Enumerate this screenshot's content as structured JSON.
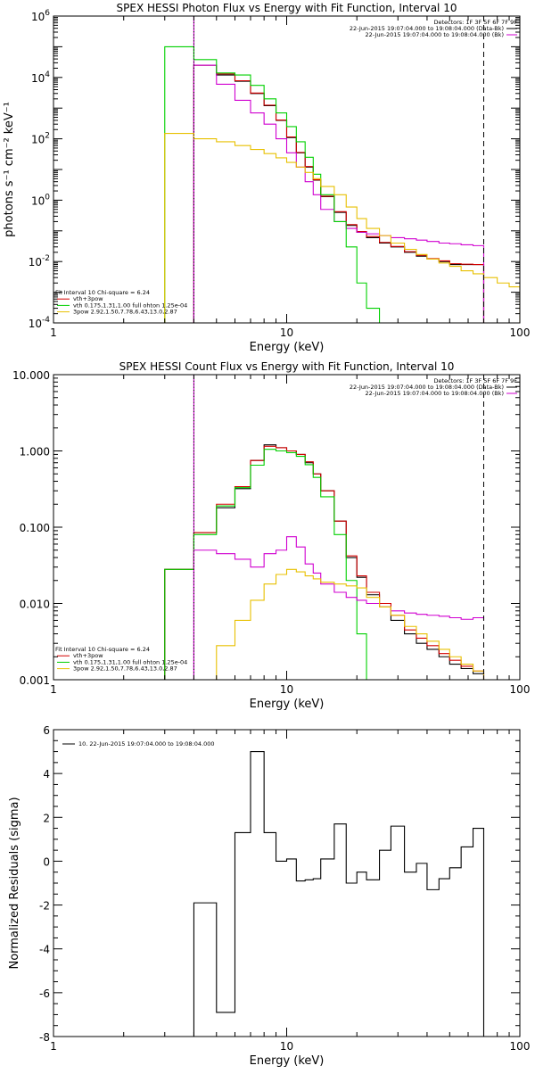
{
  "colors": {
    "black": "#000000",
    "red": "#d40000",
    "green": "#00d000",
    "magenta": "#d000d0",
    "yellow": "#e8c000"
  },
  "chart_data": [
    {
      "type": "line",
      "title": "SPEX HESSI Photon Flux vs Energy with Fit Function, Interval 10",
      "xlabel": "Energy (keV)",
      "ylabel": "photons s⁻¹ cm⁻² keV⁻¹",
      "xscale": "log",
      "yscale": "log",
      "xlim": [
        1,
        100
      ],
      "ylim": [
        0.0001,
        1000000
      ],
      "xticks": [
        {
          "value": 1,
          "label": "1"
        },
        {
          "value": 10,
          "label": "10"
        },
        {
          "value": 100,
          "label": "100"
        }
      ],
      "yticks": [
        {
          "value": 0.0001,
          "base": "10",
          "exp": "-4"
        },
        {
          "value": 0.01,
          "base": "10",
          "exp": "-2"
        },
        {
          "value": 1,
          "base": "10",
          "exp": "0"
        },
        {
          "value": 100,
          "base": "10",
          "exp": "2"
        },
        {
          "value": 10000,
          "base": "10",
          "exp": "4"
        },
        {
          "value": 1000000,
          "base": "10",
          "exp": "6"
        }
      ],
      "vlines": [
        {
          "x": 4.0,
          "style": "dotted",
          "color": "#000000"
        },
        {
          "x": 70.0,
          "style": "dashed",
          "color": "#000000"
        }
      ],
      "legend_right": [
        {
          "text": "Detectors: 1F 3F 5F 6F 7F 9F",
          "color": ""
        },
        {
          "text": "22-Jun-2015 19:07:04.000 to 19:08:04.000 (Data-Bk)",
          "color": "#000000"
        },
        {
          "text": "22-Jun-2015 19:07:04.000 to 19:08:04.000 (Bk)",
          "color": "#d000d0"
        }
      ],
      "legend_left": [
        {
          "text": "Fit Interval 10   Chi-square = 6.24",
          "color": ""
        },
        {
          "text": "vth+3pow",
          "color": "#d40000"
        },
        {
          "text": "vth 0.175,1.31,1.00  full ohton 1.25e-04",
          "color": "#00d000"
        },
        {
          "text": "3pow 2.92,1.50,7.78,6.43,13.0,2.87",
          "color": "#e8c000"
        }
      ],
      "series": [
        {
          "color": "#d000d0",
          "x_edges": [
            4.0,
            4.0
          ],
          "values": [
            0.0001,
            1000000
          ],
          "clip_between": [
            0.0001,
            30
          ]
        },
        {
          "color": "#000000",
          "edges": [
            4,
            5,
            6,
            7,
            8,
            9,
            10,
            11,
            12,
            13,
            14,
            16,
            18,
            20,
            22,
            25,
            28,
            32,
            36,
            40,
            45,
            50,
            56,
            63,
            70
          ],
          "values": [
            25000,
            12000,
            7500,
            3000,
            1200,
            400,
            110,
            35,
            12,
            4.5,
            1.3,
            0.4,
            0.15,
            0.09,
            0.06,
            0.04,
            0.03,
            0.02,
            0.015,
            0.012,
            0.01,
            0.008,
            0.008,
            0.008
          ]
        },
        {
          "color": "#d40000",
          "edges": [
            4,
            5,
            6,
            7,
            8,
            9,
            10,
            11,
            12,
            13,
            14,
            16,
            18,
            20,
            22,
            25,
            28,
            32,
            36,
            40,
            45,
            50,
            56,
            63,
            70
          ],
          "values": [
            25000,
            13000,
            7800,
            3100,
            1250,
            410,
            115,
            36,
            12.5,
            4.6,
            1.35,
            0.42,
            0.16,
            0.095,
            0.065,
            0.042,
            0.031,
            0.021,
            0.016,
            0.0125,
            0.0105,
            0.0085,
            0.0082,
            0.008
          ]
        },
        {
          "color": "#d000d0",
          "edges": [
            4,
            5,
            6,
            7,
            8,
            9,
            10,
            11,
            12,
            13,
            14,
            16,
            18,
            20,
            22,
            25,
            28,
            32,
            36,
            40,
            45,
            50,
            56,
            63,
            70
          ],
          "values": [
            25000,
            6000,
            1800,
            700,
            300,
            100,
            35,
            12,
            4,
            1.5,
            0.5,
            0.2,
            0.12,
            0.09,
            0.08,
            0.07,
            0.06,
            0.055,
            0.05,
            0.045,
            0.04,
            0.038,
            0.035,
            0.033
          ]
        },
        {
          "color": "#00d000",
          "edges": [
            3,
            4,
            5,
            6,
            7,
            8,
            9,
            10,
            11,
            12,
            13,
            14,
            16,
            18,
            20,
            22,
            25,
            28
          ],
          "values": [
            100000,
            38000,
            14000,
            12000,
            5500,
            2000,
            700,
            250,
            80,
            25,
            7,
            1.5,
            0.2,
            0.03,
            0.002,
            0.0003,
            5e-05
          ]
        },
        {
          "color": "#e8c000",
          "edges": [
            3,
            4,
            5,
            6,
            7,
            8,
            9,
            10,
            11,
            12,
            13,
            14,
            16,
            18,
            20,
            22,
            25,
            28,
            32,
            36,
            40,
            45,
            50,
            56,
            63,
            70,
            80,
            90,
            100
          ],
          "values": [
            150,
            100,
            80,
            60,
            45,
            33,
            24,
            17,
            12,
            8,
            5,
            2.8,
            1.5,
            0.6,
            0.25,
            0.12,
            0.07,
            0.04,
            0.025,
            0.017,
            0.012,
            0.009,
            0.007,
            0.005,
            0.004,
            0.003,
            0.002,
            0.0015
          ]
        }
      ]
    },
    {
      "type": "line",
      "title": "SPEX HESSI Count Flux vs Energy with Fit Function, Interval 10",
      "xlabel": "Energy (keV)",
      "ylabel": "",
      "xscale": "log",
      "yscale": "log",
      "xlim": [
        1,
        100
      ],
      "ylim": [
        0.001,
        10
      ],
      "xticks": [
        {
          "value": 1,
          "label": "1"
        },
        {
          "value": 10,
          "label": "10"
        },
        {
          "value": 100,
          "label": "100"
        }
      ],
      "yticks": [
        {
          "value": 0.001,
          "label": "0.001"
        },
        {
          "value": 0.01,
          "label": "0.010"
        },
        {
          "value": 0.1,
          "label": "0.100"
        },
        {
          "value": 1,
          "label": "1.000"
        },
        {
          "value": 10,
          "label": "10.000"
        }
      ],
      "vlines": [
        {
          "x": 4.0,
          "style": "dotted",
          "color": "#000000"
        },
        {
          "x": 70.0,
          "style": "dashed",
          "color": "#000000"
        }
      ],
      "legend_right": [
        {
          "text": "Detectors: 1F 3F 5F 6F 7F 9F",
          "color": ""
        },
        {
          "text": "22-Jun-2015 19:07:04.000 to 19:08:04.000 (Data-Bk)",
          "color": "#000000"
        },
        {
          "text": "22-Jun-2015 19:07:04.000 to 19:08:04.000 (Bk)",
          "color": "#d000d0"
        }
      ],
      "legend_left": [
        {
          "text": "Fit Interval 10   Chi-square = 6.24",
          "color": ""
        },
        {
          "text": "vth+3pow",
          "color": "#d40000"
        },
        {
          "text": "vth 0.175,1.31,1.00  full ohton 1.25e-04",
          "color": "#00d000"
        },
        {
          "text": "3pow 2.92,1.50,7.78,6.43,13.0,2.87",
          "color": "#e8c000"
        }
      ],
      "series": [
        {
          "color": "#d000d0",
          "x_edges": [
            4.0,
            4.0
          ],
          "values": [
            0.001,
            10
          ]
        },
        {
          "color": "#000000",
          "edges": [
            3,
            4,
            5,
            6,
            7,
            8,
            9,
            10,
            11,
            12,
            13,
            14,
            16,
            18,
            20,
            22,
            25,
            28,
            32,
            36,
            40,
            45,
            50,
            56,
            63,
            70
          ],
          "values": [
            0.028,
            0.085,
            0.18,
            0.32,
            0.75,
            1.2,
            1.1,
            1.0,
            0.9,
            0.7,
            0.5,
            0.3,
            0.12,
            0.04,
            0.022,
            0.013,
            0.009,
            0.006,
            0.004,
            0.003,
            0.0025,
            0.002,
            0.0016,
            0.0014,
            0.0012
          ]
        },
        {
          "color": "#d40000",
          "edges": [
            3,
            4,
            5,
            6,
            7,
            8,
            9,
            10,
            11,
            12,
            13,
            14,
            16,
            18,
            20,
            22,
            25,
            28,
            32,
            36,
            40,
            45,
            50,
            56,
            63,
            70
          ],
          "values": [
            0.028,
            0.085,
            0.2,
            0.34,
            0.75,
            1.15,
            1.1,
            1.0,
            0.9,
            0.72,
            0.5,
            0.3,
            0.12,
            0.042,
            0.023,
            0.014,
            0.01,
            0.007,
            0.0045,
            0.0035,
            0.0028,
            0.0022,
            0.0018,
            0.0015,
            0.0013
          ]
        },
        {
          "color": "#00d000",
          "edges": [
            3,
            4,
            5,
            6,
            7,
            8,
            9,
            10,
            11,
            12,
            13,
            14,
            16,
            18,
            20,
            22,
            25
          ],
          "values": [
            0.028,
            0.08,
            0.19,
            0.33,
            0.65,
            1.05,
            1.0,
            0.95,
            0.85,
            0.66,
            0.45,
            0.25,
            0.08,
            0.02,
            0.004,
            0.001
          ]
        },
        {
          "color": "#d000d0",
          "edges": [
            4,
            5,
            6,
            7,
            8,
            9,
            10,
            11,
            12,
            13,
            14,
            16,
            18,
            20,
            22,
            25,
            28,
            32,
            36,
            40,
            45,
            50,
            56,
            63,
            70
          ],
          "values": [
            0.05,
            0.045,
            0.038,
            0.03,
            0.045,
            0.05,
            0.075,
            0.055,
            0.033,
            0.025,
            0.018,
            0.014,
            0.012,
            0.011,
            0.01,
            0.009,
            0.008,
            0.0075,
            0.0072,
            0.007,
            0.0068,
            0.0065,
            0.0062,
            0.0065,
            0.006
          ]
        },
        {
          "color": "#e8c000",
          "edges": [
            4,
            5,
            6,
            7,
            8,
            9,
            10,
            11,
            12,
            13,
            14,
            16,
            18,
            20,
            22,
            25,
            28,
            32,
            36,
            40,
            45,
            50,
            56,
            63,
            70,
            80
          ],
          "values": [
            0.001,
            0.0028,
            0.006,
            0.011,
            0.018,
            0.024,
            0.028,
            0.026,
            0.023,
            0.021,
            0.019,
            0.018,
            0.017,
            0.016,
            0.012,
            0.009,
            0.007,
            0.005,
            0.004,
            0.0032,
            0.0025,
            0.002,
            0.0016,
            0.0013,
            0.001
          ]
        }
      ]
    },
    {
      "type": "line",
      "title": "",
      "xlabel": "Energy (keV)",
      "ylabel": "Normalized Residuals (sigma)",
      "xscale": "log",
      "yscale": "linear",
      "xlim": [
        1,
        100
      ],
      "ylim": [
        -8,
        6
      ],
      "xticks": [
        {
          "value": 1,
          "label": "1"
        },
        {
          "value": 10,
          "label": "10"
        },
        {
          "value": 100,
          "label": "100"
        }
      ],
      "yticks": [
        {
          "value": -8,
          "label": "-8"
        },
        {
          "value": -6,
          "label": "-6"
        },
        {
          "value": -4,
          "label": "-4"
        },
        {
          "value": -2,
          "label": "-2"
        },
        {
          "value": 0,
          "label": "0"
        },
        {
          "value": 2,
          "label": "2"
        },
        {
          "value": 4,
          "label": "4"
        },
        {
          "value": 6,
          "label": "6"
        }
      ],
      "legend_left": [
        {
          "text": "10. 22-Jun-2015 19:07:04.000 to 19:08:04.000",
          "color": "#000000"
        }
      ],
      "series": [
        {
          "name": "10. 22-Jun-2015 19:07:04.000 to 19:08:04.000",
          "color": "#000000",
          "edges": [
            4,
            5,
            6,
            7,
            8,
            9,
            10,
            11,
            12,
            13,
            14,
            16,
            18,
            20,
            22,
            25,
            28,
            32,
            36,
            40,
            45,
            50,
            56,
            63,
            70
          ],
          "values": [
            -1.9,
            -6.9,
            1.3,
            5.0,
            1.3,
            0.0,
            0.1,
            -0.9,
            -0.85,
            -0.8,
            0.1,
            1.7,
            -1.0,
            -0.5,
            -0.85,
            0.5,
            1.6,
            -0.5,
            -0.1,
            -1.3,
            -0.8,
            -0.3,
            0.65,
            1.5
          ],
          "close_to": -8.3
        }
      ]
    }
  ]
}
